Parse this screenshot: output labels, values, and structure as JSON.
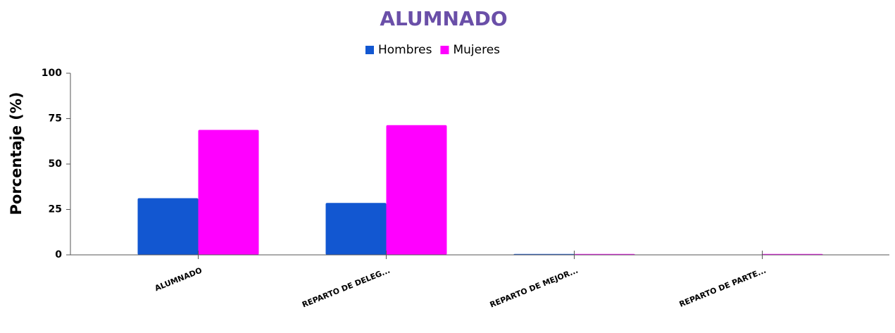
{
  "chart_data": {
    "type": "bar",
    "title": "ALUMNADO",
    "y_label": "Porcentaje (%)",
    "categories": [
      "ALUMNADO",
      "REPARTO DE DELEG...",
      "REPARTO DE MEJOR...",
      "REPARTO DE PARTE..."
    ],
    "series": [
      {
        "name": "Hombres",
        "color": "#1257d1",
        "values": [
          31.2,
          28.6,
          0.5,
          0
        ]
      },
      {
        "name": "Mujeres",
        "color": "#ff00ff",
        "values": [
          68.8,
          71.4,
          0.5,
          0.5
        ]
      }
    ],
    "ylim": [
      0,
      100
    ],
    "yticks": [
      0,
      25,
      50,
      75,
      100
    ],
    "legend": "top"
  }
}
